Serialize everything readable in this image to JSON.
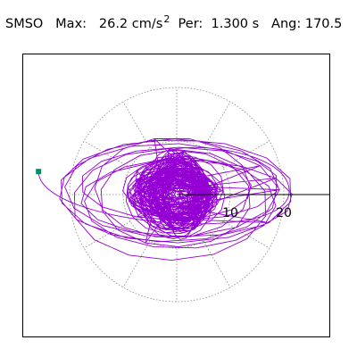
{
  "header": {
    "station": "SMSO",
    "max_label": "Max:",
    "max_value": "26.2",
    "max_unit": "cm/s",
    "max_unit_sup": "2",
    "per_label": "Per:",
    "per_value": "1.300 s",
    "ang_label": "Ang:",
    "ang_value": "170.5"
  },
  "chart_data": {
    "type": "scatter",
    "title": "",
    "polar_grid": true,
    "radial_ticks": [
      "10",
      "20"
    ],
    "radial_tick_values": [
      10,
      20
    ],
    "grid_radius": 20,
    "grid_spokes_deg": [
      0,
      30,
      60,
      90,
      120,
      150,
      180,
      210,
      240,
      270,
      300,
      330
    ],
    "max_acceleration": 26.2,
    "max_angle_deg": 170.5,
    "max_marker": {
      "x": -25.8,
      "y": 4.3
    },
    "colors": {
      "trace": "#9400d3",
      "grid": "#888888",
      "axis": "#000000",
      "marker": "#008b6b"
    }
  }
}
